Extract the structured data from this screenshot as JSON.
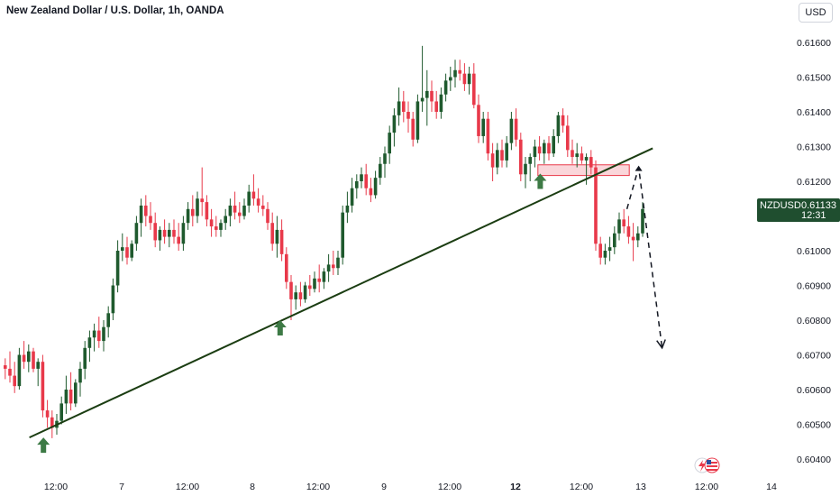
{
  "header": {
    "title": "New Zealand Dollar / U.S. Dollar, 1h, OANDA",
    "currency": "USD"
  },
  "price_tag": {
    "symbol": "NZDUSD",
    "price": "0.61133",
    "countdown": "12:31"
  },
  "colors": {
    "up": "#1f5a2e",
    "down": "#e8394a",
    "trendline": "#1b3d12",
    "arrow": "#3d7a45",
    "zone_fill": "#f5b5bb",
    "zone_stroke": "#e8394a"
  },
  "icons": {
    "flash": "lightning-icon",
    "flag": "us-flag-icon"
  },
  "chart_data": {
    "type": "candlestick",
    "y_axis": {
      "ticks": [
        "0.61600",
        "0.61500",
        "0.61400",
        "0.61300",
        "0.61200",
        "0.61100",
        "0.61000",
        "0.60900",
        "0.60800",
        "0.60700",
        "0.60600",
        "0.60500",
        "0.60400"
      ],
      "ylim": [
        0.6037,
        0.6166
      ]
    },
    "x_axis": {
      "ticks": [
        {
          "label": "12:00",
          "bold": false
        },
        {
          "label": "7",
          "bold": false
        },
        {
          "label": "12:00",
          "bold": false
        },
        {
          "label": "8",
          "bold": false
        },
        {
          "label": "12:00",
          "bold": false
        },
        {
          "label": "9",
          "bold": false
        },
        {
          "label": "12:00",
          "bold": false
        },
        {
          "label": "12",
          "bold": true
        },
        {
          "label": "12:00",
          "bold": false
        },
        {
          "label": "13",
          "bold": false
        },
        {
          "label": "12:00",
          "bold": false
        },
        {
          "label": "14",
          "bold": false
        }
      ]
    },
    "candles": [
      [
        0.6067,
        0.6069,
        0.6063,
        0.6066
      ],
      [
        0.6066,
        0.6071,
        0.6062,
        0.6064
      ],
      [
        0.6064,
        0.6068,
        0.6059,
        0.6061
      ],
      [
        0.6061,
        0.6072,
        0.606,
        0.607
      ],
      [
        0.607,
        0.6074,
        0.6066,
        0.6068
      ],
      [
        0.6068,
        0.6073,
        0.6065,
        0.6071
      ],
      [
        0.6071,
        0.6072,
        0.6065,
        0.6066
      ],
      [
        0.6066,
        0.6069,
        0.6061,
        0.6068
      ],
      [
        0.6068,
        0.607,
        0.6052,
        0.6054
      ],
      [
        0.6054,
        0.6057,
        0.6049,
        0.6052
      ],
      [
        0.6052,
        0.6054,
        0.6046,
        0.6049
      ],
      [
        0.6049,
        0.6053,
        0.6047,
        0.6051
      ],
      [
        0.6051,
        0.6058,
        0.605,
        0.6056
      ],
      [
        0.6056,
        0.6064,
        0.6053,
        0.606
      ],
      [
        0.606,
        0.6065,
        0.6054,
        0.6056
      ],
      [
        0.6056,
        0.6063,
        0.6055,
        0.6062
      ],
      [
        0.6062,
        0.6068,
        0.6058,
        0.6066
      ],
      [
        0.6066,
        0.6074,
        0.6063,
        0.6072
      ],
      [
        0.6072,
        0.6077,
        0.6068,
        0.6075
      ],
      [
        0.6075,
        0.6079,
        0.6071,
        0.6077
      ],
      [
        0.6077,
        0.6081,
        0.6072,
        0.6074
      ],
      [
        0.6074,
        0.608,
        0.6071,
        0.6078
      ],
      [
        0.6078,
        0.6084,
        0.6075,
        0.6082
      ],
      [
        0.6082,
        0.6092,
        0.608,
        0.609
      ],
      [
        0.609,
        0.6103,
        0.6088,
        0.61
      ],
      [
        0.61,
        0.6105,
        0.6097,
        0.6101
      ],
      [
        0.6101,
        0.6104,
        0.6096,
        0.6098
      ],
      [
        0.6098,
        0.6103,
        0.6097,
        0.6102
      ],
      [
        0.6102,
        0.611,
        0.61,
        0.6108
      ],
      [
        0.6108,
        0.6115,
        0.6104,
        0.6113
      ],
      [
        0.6113,
        0.6116,
        0.6107,
        0.611
      ],
      [
        0.611,
        0.6114,
        0.6106,
        0.6108
      ],
      [
        0.6108,
        0.6111,
        0.6101,
        0.6103
      ],
      [
        0.6103,
        0.6107,
        0.61,
        0.6106
      ],
      [
        0.6106,
        0.6109,
        0.6102,
        0.6104
      ],
      [
        0.6104,
        0.6108,
        0.6101,
        0.6106
      ],
      [
        0.6106,
        0.6109,
        0.6102,
        0.6104
      ],
      [
        0.6104,
        0.6108,
        0.61,
        0.6102
      ],
      [
        0.6102,
        0.611,
        0.61,
        0.6108
      ],
      [
        0.6108,
        0.6114,
        0.6106,
        0.6112
      ],
      [
        0.6112,
        0.6116,
        0.6107,
        0.611
      ],
      [
        0.611,
        0.6117,
        0.6108,
        0.6115
      ],
      [
        0.6115,
        0.6124,
        0.611,
        0.6114
      ],
      [
        0.6114,
        0.6116,
        0.6107,
        0.6109
      ],
      [
        0.6109,
        0.6112,
        0.6104,
        0.6107
      ],
      [
        0.6107,
        0.611,
        0.6104,
        0.6106
      ],
      [
        0.6106,
        0.6109,
        0.6104,
        0.6108
      ],
      [
        0.6108,
        0.6112,
        0.6106,
        0.611
      ],
      [
        0.611,
        0.6115,
        0.6107,
        0.6113
      ],
      [
        0.6113,
        0.6117,
        0.6109,
        0.6111
      ],
      [
        0.6111,
        0.6114,
        0.6108,
        0.611
      ],
      [
        0.611,
        0.6115,
        0.6109,
        0.6113
      ],
      [
        0.6113,
        0.6119,
        0.6111,
        0.6117
      ],
      [
        0.6117,
        0.6122,
        0.6113,
        0.6115
      ],
      [
        0.6115,
        0.6118,
        0.6111,
        0.6113
      ],
      [
        0.6113,
        0.6116,
        0.611,
        0.6112
      ],
      [
        0.6112,
        0.6114,
        0.6106,
        0.6108
      ],
      [
        0.6108,
        0.6111,
        0.61,
        0.6102
      ],
      [
        0.6102,
        0.611,
        0.6098,
        0.6106
      ],
      [
        0.6106,
        0.6109,
        0.6097,
        0.6099
      ],
      [
        0.6099,
        0.6101,
        0.6089,
        0.6091
      ],
      [
        0.6091,
        0.6093,
        0.608,
        0.6086
      ],
      [
        0.6086,
        0.609,
        0.6083,
        0.6088
      ],
      [
        0.6088,
        0.6091,
        0.6084,
        0.6086
      ],
      [
        0.6086,
        0.6091,
        0.6085,
        0.609
      ],
      [
        0.609,
        0.6093,
        0.6087,
        0.6089
      ],
      [
        0.6089,
        0.6094,
        0.6088,
        0.6092
      ],
      [
        0.6092,
        0.6096,
        0.6088,
        0.6091
      ],
      [
        0.6091,
        0.6095,
        0.6089,
        0.6094
      ],
      [
        0.6094,
        0.6099,
        0.6091,
        0.6096
      ],
      [
        0.6096,
        0.61,
        0.6093,
        0.6095
      ],
      [
        0.6095,
        0.61,
        0.6093,
        0.6098
      ],
      [
        0.6098,
        0.6113,
        0.6096,
        0.6111
      ],
      [
        0.6111,
        0.6117,
        0.6108,
        0.6113
      ],
      [
        0.6113,
        0.6121,
        0.6111,
        0.6118
      ],
      [
        0.6118,
        0.6122,
        0.6115,
        0.612
      ],
      [
        0.612,
        0.6124,
        0.6118,
        0.6122
      ],
      [
        0.6122,
        0.6125,
        0.6116,
        0.6118
      ],
      [
        0.6118,
        0.6121,
        0.6114,
        0.6116
      ],
      [
        0.6116,
        0.6123,
        0.6115,
        0.6121
      ],
      [
        0.6121,
        0.6127,
        0.6119,
        0.6125
      ],
      [
        0.6125,
        0.613,
        0.6121,
        0.6128
      ],
      [
        0.6128,
        0.6136,
        0.6125,
        0.6134
      ],
      [
        0.6134,
        0.6141,
        0.613,
        0.6139
      ],
      [
        0.6139,
        0.6147,
        0.6136,
        0.6143
      ],
      [
        0.6143,
        0.6146,
        0.6137,
        0.614
      ],
      [
        0.614,
        0.6143,
        0.6134,
        0.6138
      ],
      [
        0.6138,
        0.614,
        0.613,
        0.6132
      ],
      [
        0.6132,
        0.6145,
        0.6131,
        0.6143
      ],
      [
        0.6143,
        0.6159,
        0.614,
        0.6144
      ],
      [
        0.6144,
        0.6152,
        0.6136,
        0.6146
      ],
      [
        0.6146,
        0.6149,
        0.614,
        0.6143
      ],
      [
        0.6143,
        0.6146,
        0.6138,
        0.614
      ],
      [
        0.614,
        0.6147,
        0.6138,
        0.6145
      ],
      [
        0.6145,
        0.6151,
        0.6143,
        0.6149
      ],
      [
        0.6149,
        0.6153,
        0.6146,
        0.615
      ],
      [
        0.615,
        0.6155,
        0.6147,
        0.6152
      ],
      [
        0.6152,
        0.6155,
        0.6149,
        0.6151
      ],
      [
        0.6151,
        0.6154,
        0.6146,
        0.6148
      ],
      [
        0.6148,
        0.6153,
        0.6145,
        0.6151
      ],
      [
        0.6151,
        0.6154,
        0.6141,
        0.6142
      ],
      [
        0.6142,
        0.6145,
        0.6131,
        0.6133
      ],
      [
        0.6133,
        0.614,
        0.6131,
        0.6138
      ],
      [
        0.6138,
        0.614,
        0.6126,
        0.6128
      ],
      [
        0.6128,
        0.6131,
        0.612,
        0.6124
      ],
      [
        0.6124,
        0.6131,
        0.6122,
        0.6129
      ],
      [
        0.6129,
        0.6132,
        0.6124,
        0.6126
      ],
      [
        0.6126,
        0.6133,
        0.6124,
        0.6131
      ],
      [
        0.6131,
        0.614,
        0.6129,
        0.6138
      ],
      [
        0.6138,
        0.6141,
        0.613,
        0.6132
      ],
      [
        0.6132,
        0.6134,
        0.612,
        0.6122
      ],
      [
        0.6122,
        0.6127,
        0.6118,
        0.6125
      ],
      [
        0.6125,
        0.6128,
        0.612,
        0.6127
      ],
      [
        0.6127,
        0.6132,
        0.6124,
        0.613
      ],
      [
        0.613,
        0.6133,
        0.6126,
        0.6128
      ],
      [
        0.6128,
        0.6132,
        0.6125,
        0.6131
      ],
      [
        0.6131,
        0.6133,
        0.6126,
        0.6128
      ],
      [
        0.6128,
        0.6135,
        0.6127,
        0.6133
      ],
      [
        0.6133,
        0.614,
        0.6131,
        0.6139
      ],
      [
        0.6139,
        0.6141,
        0.6134,
        0.6136
      ],
      [
        0.6136,
        0.6139,
        0.6127,
        0.6129
      ],
      [
        0.6129,
        0.6132,
        0.6125,
        0.6127
      ],
      [
        0.6127,
        0.6131,
        0.6124,
        0.6128
      ],
      [
        0.6128,
        0.613,
        0.6125,
        0.6126
      ],
      [
        0.6126,
        0.6128,
        0.6119,
        0.6127
      ],
      [
        0.6127,
        0.6129,
        0.6122,
        0.6124
      ],
      [
        0.6124,
        0.6126,
        0.61,
        0.6102
      ],
      [
        0.6102,
        0.6104,
        0.6096,
        0.6098
      ],
      [
        0.6098,
        0.6102,
        0.6096,
        0.61
      ],
      [
        0.61,
        0.6104,
        0.6097,
        0.6101
      ],
      [
        0.6101,
        0.6107,
        0.6099,
        0.6105
      ],
      [
        0.6105,
        0.6111,
        0.6103,
        0.6109
      ],
      [
        0.6109,
        0.6112,
        0.6105,
        0.6107
      ],
      [
        0.6107,
        0.611,
        0.6102,
        0.6104
      ],
      [
        0.6104,
        0.6108,
        0.6097,
        0.6103
      ],
      [
        0.6103,
        0.6107,
        0.6101,
        0.6105
      ],
      [
        0.6105,
        0.6114,
        0.6104,
        0.6112
      ]
    ],
    "annotations": [
      {
        "kind": "trendline",
        "from": {
          "i": 5.5,
          "v": 0.60462
        },
        "to": {
          "i": 138.5,
          "v": 0.61295
        }
      },
      {
        "kind": "zone",
        "i_from": 114,
        "i_to": 133.5,
        "v_from": 0.61227,
        "v_to": 0.61237
      },
      {
        "kind": "up_arrow",
        "i": 8.5,
        "v": 0.60462
      },
      {
        "kind": "up_arrow",
        "i": 59,
        "v": 0.608
      },
      {
        "kind": "up_arrow",
        "i": 114.5,
        "v": 0.61222
      },
      {
        "kind": "dashed_path",
        "points": [
          {
            "i": 133.0,
            "v": 0.6112
          },
          {
            "i": 135.5,
            "v": 0.6124
          },
          {
            "i": 140.5,
            "v": 0.6072
          }
        ]
      }
    ]
  }
}
